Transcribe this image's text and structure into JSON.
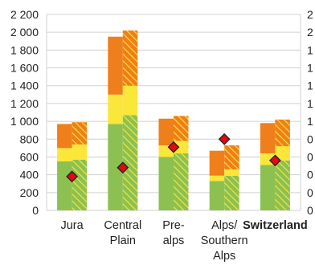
{
  "chart_data": {
    "type": "bar",
    "categories": [
      {
        "lines": [
          "Jura"
        ],
        "bold": false
      },
      {
        "lines": [
          "Central",
          "Plain"
        ],
        "bold": false
      },
      {
        "lines": [
          "Pre-",
          "alps"
        ],
        "bold": false
      },
      {
        "lines": [
          "Alps/",
          "Southern",
          "Alps"
        ],
        "bold": false
      },
      {
        "lines": [
          "Switzerland"
        ],
        "bold": true
      }
    ],
    "ylim": [
      0,
      2200
    ],
    "y_ticks": [
      0,
      200,
      400,
      600,
      800,
      1000,
      1200,
      1400,
      1600,
      1800,
      2000,
      2200
    ],
    "y_tick_labels": [
      "0",
      "200",
      "400",
      "600",
      "800",
      "1 000",
      "1 200",
      "1 400",
      "1 600",
      "1 800",
      "2 000",
      "2 200"
    ],
    "y_tick_labels_right_visible": [
      "0",
      "0",
      "0",
      "0",
      "0",
      "1",
      "1",
      "1",
      "1",
      "1",
      "2",
      "2"
    ],
    "grid": true,
    "stack_colors": [
      "#8cc152",
      "#fbe63a",
      "#ef7f1a"
    ],
    "hatch_color": "#fbe63a",
    "marker_fill": "#e30613",
    "bars_solid": [
      [
        550,
        150,
        270
      ],
      [
        970,
        330,
        650
      ],
      [
        600,
        130,
        300
      ],
      [
        330,
        60,
        280
      ],
      [
        510,
        130,
        340
      ]
    ],
    "bars_hatched": [
      [
        570,
        170,
        250
      ],
      [
        1070,
        330,
        620
      ],
      [
        640,
        140,
        280
      ],
      [
        390,
        70,
        270
      ],
      [
        560,
        160,
        300
      ]
    ],
    "markers": [
      380,
      480,
      710,
      800,
      560
    ]
  }
}
